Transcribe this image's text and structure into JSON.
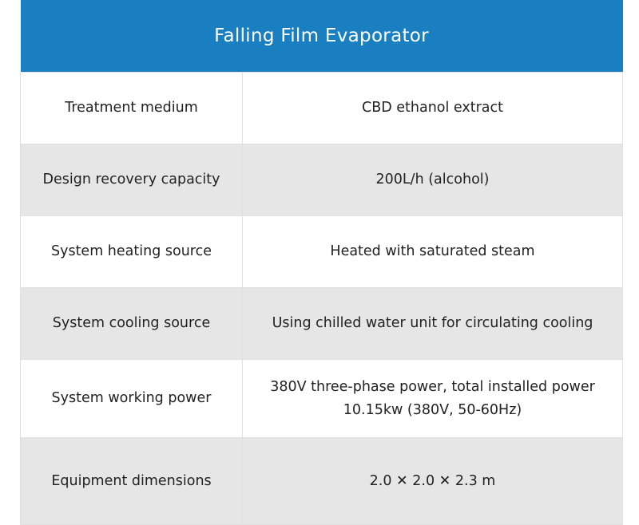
{
  "title": "Falling Film Evaporator",
  "rows": [
    {
      "label": "Treatment medium",
      "value": "CBD ethanol extract"
    },
    {
      "label": "Design recovery capacity",
      "value": "200L/h (alcohol)"
    },
    {
      "label": "System heating source",
      "value": "Heated with saturated steam"
    },
    {
      "label": "System cooling source",
      "value": "Using chilled water unit for circulating cooling"
    },
    {
      "label": "System working power",
      "value": "380V three-phase power, total installed power",
      "value_line2": "10.15kw (380V, 50-60Hz)"
    },
    {
      "label": "Equipment dimensions",
      "value": "2.0 ✕ 2.0 ✕ 2.3 m"
    }
  ],
  "colors": {
    "header": "#1a7fc1",
    "shaded_row": "#e6e6e6",
    "border": "#e0e0e0"
  }
}
